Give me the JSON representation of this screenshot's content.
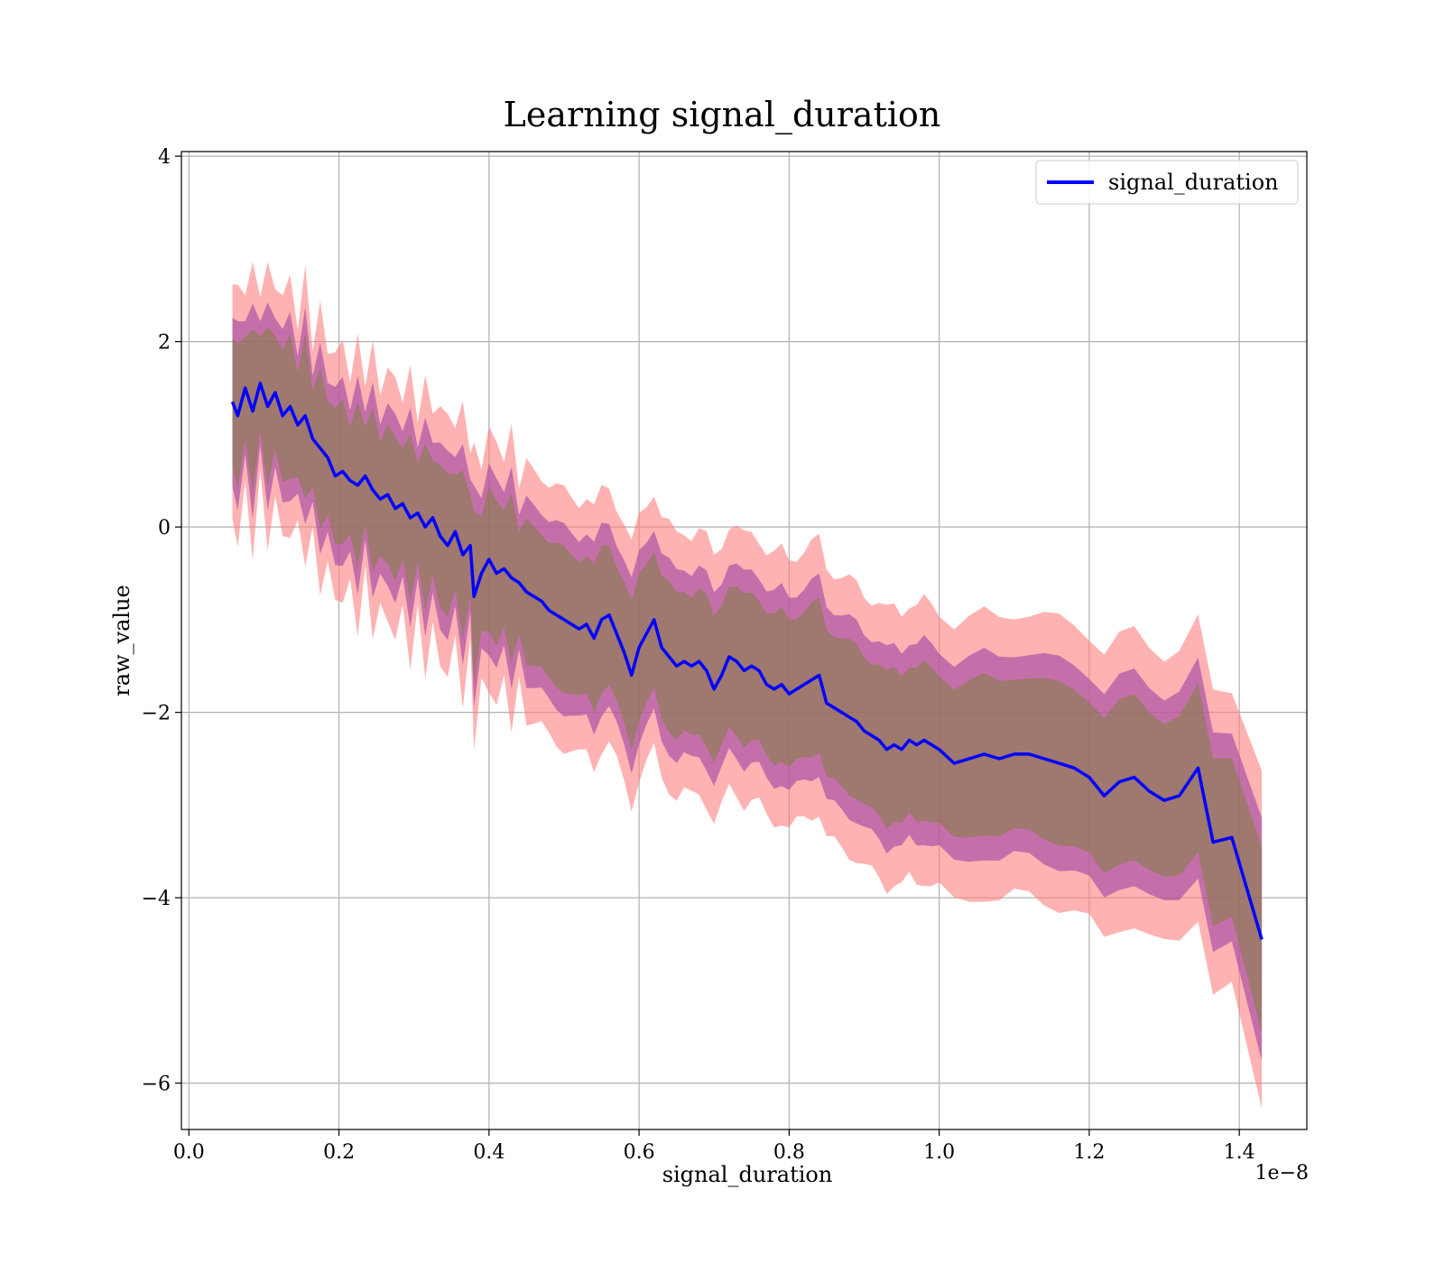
{
  "chart_data": {
    "type": "line",
    "title": "Learning signal_duration",
    "xlabel": "signal_duration",
    "ylabel": "raw_value",
    "x_offset_label": "1e−8",
    "xlim": [
      -0.01,
      1.49
    ],
    "ylim": [
      -6.5,
      4.05
    ],
    "x_ticks": [
      0.0,
      0.2,
      0.4,
      0.6,
      0.8,
      1.0,
      1.2,
      1.4
    ],
    "x_tick_labels": [
      "0.0",
      "0.2",
      "0.4",
      "0.6",
      "0.8",
      "1.0",
      "1.2",
      "1.4"
    ],
    "y_ticks": [
      -6,
      -4,
      -2,
      0,
      2,
      4
    ],
    "y_tick_labels": [
      "−6",
      "−4",
      "−2",
      "0",
      "2",
      "4"
    ],
    "grid": true,
    "legend_position": "upper right",
    "series": [
      {
        "name": "signal_duration",
        "color": "#0000ff",
        "x": [
          0.058,
          0.065,
          0.075,
          0.085,
          0.095,
          0.105,
          0.115,
          0.125,
          0.135,
          0.145,
          0.155,
          0.165,
          0.175,
          0.185,
          0.195,
          0.205,
          0.215,
          0.225,
          0.235,
          0.245,
          0.255,
          0.265,
          0.275,
          0.285,
          0.295,
          0.305,
          0.315,
          0.325,
          0.335,
          0.345,
          0.355,
          0.365,
          0.375,
          0.38,
          0.39,
          0.4,
          0.41,
          0.42,
          0.43,
          0.44,
          0.45,
          0.46,
          0.47,
          0.48,
          0.49,
          0.5,
          0.51,
          0.52,
          0.53,
          0.54,
          0.55,
          0.56,
          0.57,
          0.58,
          0.59,
          0.6,
          0.61,
          0.62,
          0.63,
          0.64,
          0.65,
          0.66,
          0.67,
          0.68,
          0.69,
          0.7,
          0.71,
          0.72,
          0.73,
          0.74,
          0.75,
          0.76,
          0.77,
          0.78,
          0.79,
          0.8,
          0.81,
          0.82,
          0.83,
          0.84,
          0.85,
          0.86,
          0.87,
          0.88,
          0.89,
          0.9,
          0.91,
          0.92,
          0.93,
          0.94,
          0.95,
          0.96,
          0.97,
          0.98,
          0.99,
          1.0,
          1.02,
          1.04,
          1.06,
          1.08,
          1.1,
          1.12,
          1.14,
          1.16,
          1.18,
          1.2,
          1.22,
          1.24,
          1.26,
          1.28,
          1.3,
          1.32,
          1.345,
          1.365,
          1.39,
          1.43
        ],
        "values": [
          1.35,
          1.2,
          1.5,
          1.25,
          1.55,
          1.3,
          1.45,
          1.2,
          1.3,
          1.1,
          1.2,
          0.95,
          0.85,
          0.75,
          0.55,
          0.6,
          0.5,
          0.45,
          0.55,
          0.4,
          0.3,
          0.35,
          0.2,
          0.25,
          0.1,
          0.15,
          0.0,
          0.1,
          -0.1,
          -0.2,
          -0.05,
          -0.3,
          -0.2,
          -0.75,
          -0.5,
          -0.35,
          -0.5,
          -0.45,
          -0.55,
          -0.6,
          -0.7,
          -0.75,
          -0.8,
          -0.9,
          -0.95,
          -1.0,
          -1.05,
          -1.1,
          -1.05,
          -1.2,
          -1.0,
          -0.95,
          -1.15,
          -1.35,
          -1.6,
          -1.3,
          -1.15,
          -1.0,
          -1.3,
          -1.4,
          -1.5,
          -1.45,
          -1.5,
          -1.45,
          -1.55,
          -1.75,
          -1.6,
          -1.4,
          -1.45,
          -1.55,
          -1.5,
          -1.55,
          -1.7,
          -1.75,
          -1.7,
          -1.8,
          -1.75,
          -1.7,
          -1.65,
          -1.6,
          -1.9,
          -1.95,
          -2.0,
          -2.05,
          -2.1,
          -2.2,
          -2.25,
          -2.3,
          -2.4,
          -2.35,
          -2.4,
          -2.3,
          -2.35,
          -2.3,
          -2.35,
          -2.4,
          -2.55,
          -2.5,
          -2.45,
          -2.5,
          -2.45,
          -2.45,
          -2.5,
          -2.55,
          -2.6,
          -2.7,
          -2.9,
          -2.75,
          -2.7,
          -2.85,
          -2.95,
          -2.9,
          -2.6,
          -3.4,
          -3.35,
          -4.45
        ]
      }
    ],
    "bands": [
      {
        "name": "outer",
        "color": "#ff7f7f",
        "upper_offset": [
          1.6,
          1.6,
          1.7,
          1.75,
          1.8,
          1.75,
          1.7,
          1.75,
          1.7,
          1.65,
          1.6,
          1.6
        ],
        "lower_offset": [
          1.5,
          1.55,
          1.6,
          1.65,
          1.7,
          1.7,
          1.65,
          1.6,
          1.65,
          1.6,
          1.55,
          1.55
        ]
      },
      {
        "name": "middle",
        "color": "#a64ca6"
      },
      {
        "name": "inner",
        "color": "#7f7f3f"
      }
    ]
  }
}
